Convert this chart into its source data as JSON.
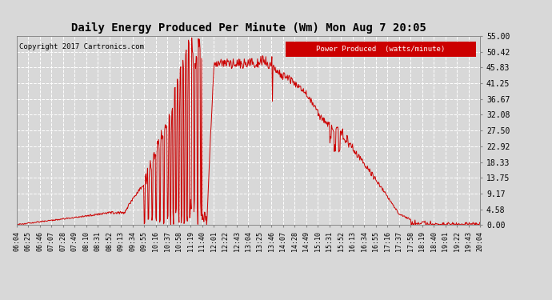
{
  "title": "Daily Energy Produced Per Minute (Wm) Mon Aug 7 20:05",
  "copyright": "Copyright 2017 Cartronics.com",
  "legend_label": "Power Produced  (watts/minute)",
  "legend_bg": "#cc0000",
  "legend_fg": "#ffffff",
  "line_color": "#cc0000",
  "bg_color": "#d8d8d8",
  "plot_bg": "#d8d8d8",
  "grid_color": "#ffffff",
  "title_color": "#000000",
  "ylim": [
    0,
    55.0
  ],
  "yticks": [
    0.0,
    4.58,
    9.17,
    13.75,
    18.33,
    22.92,
    27.5,
    32.08,
    36.67,
    41.25,
    45.83,
    50.42,
    55.0
  ],
  "xtick_labels": [
    "06:04",
    "06:25",
    "06:46",
    "07:07",
    "07:28",
    "07:49",
    "08:10",
    "08:31",
    "08:52",
    "09:13",
    "09:34",
    "09:55",
    "10:16",
    "10:37",
    "10:58",
    "11:19",
    "11:40",
    "12:01",
    "12:22",
    "12:43",
    "13:04",
    "13:25",
    "13:46",
    "14:07",
    "14:28",
    "14:49",
    "15:10",
    "15:31",
    "15:52",
    "16:13",
    "16:34",
    "16:55",
    "17:16",
    "17:37",
    "17:58",
    "18:19",
    "18:40",
    "19:01",
    "19:22",
    "19:43",
    "20:04"
  ]
}
